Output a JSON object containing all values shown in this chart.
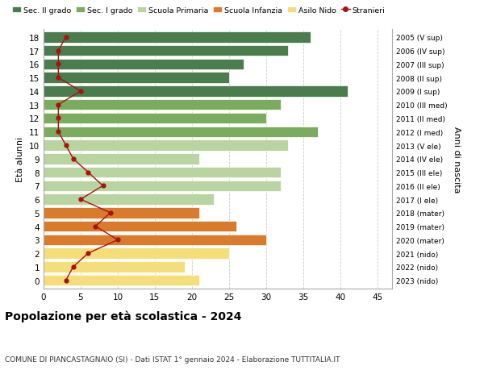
{
  "ages": [
    18,
    17,
    16,
    15,
    14,
    13,
    12,
    11,
    10,
    9,
    8,
    7,
    6,
    5,
    4,
    3,
    2,
    1,
    0
  ],
  "years": [
    "2005 (V sup)",
    "2006 (IV sup)",
    "2007 (III sup)",
    "2008 (II sup)",
    "2009 (I sup)",
    "2010 (III med)",
    "2011 (II med)",
    "2012 (I med)",
    "2013 (V ele)",
    "2014 (IV ele)",
    "2015 (III ele)",
    "2016 (II ele)",
    "2017 (I ele)",
    "2018 (mater)",
    "2019 (mater)",
    "2020 (mater)",
    "2021 (nido)",
    "2022 (nido)",
    "2023 (nido)"
  ],
  "bar_values": [
    36,
    33,
    27,
    25,
    41,
    32,
    30,
    37,
    33,
    21,
    32,
    32,
    23,
    21,
    26,
    30,
    25,
    19,
    21
  ],
  "bar_colors": [
    "#4a7c4e",
    "#4a7c4e",
    "#4a7c4e",
    "#4a7c4e",
    "#4a7c4e",
    "#7aab5e",
    "#7aab5e",
    "#7aab5e",
    "#b8d4a0",
    "#b8d4a0",
    "#b8d4a0",
    "#b8d4a0",
    "#b8d4a0",
    "#d97b2a",
    "#d97b2a",
    "#d97b2a",
    "#f5de7a",
    "#f5de7a",
    "#f5de7a"
  ],
  "stranieri": [
    3,
    2,
    2,
    2,
    5,
    2,
    2,
    2,
    3,
    4,
    6,
    8,
    5,
    9,
    7,
    10,
    6,
    4,
    3
  ],
  "stranieri_color": "#aa1111",
  "legend_labels": [
    "Sec. II grado",
    "Sec. I grado",
    "Scuola Primaria",
    "Scuola Infanzia",
    "Asilo Nido",
    "Stranieri"
  ],
  "legend_colors": [
    "#4a7c4e",
    "#7aab5e",
    "#b8d4a0",
    "#d97b2a",
    "#f5de7a",
    "#aa1111"
  ],
  "ylabel_left": "Età alunni",
  "ylabel_right": "Anni di nascita",
  "title": "Popolazione per età scolastica - 2024",
  "subtitle": "COMUNE DI PIANCASTAGNAIO (SI) - Dati ISTAT 1° gennaio 2024 - Elaborazione TUTTITALIA.IT",
  "xlim": [
    0,
    47
  ],
  "xticks": [
    0,
    5,
    10,
    15,
    20,
    25,
    30,
    35,
    40,
    45
  ],
  "grid_color": "#cccccc",
  "bar_height": 0.8
}
